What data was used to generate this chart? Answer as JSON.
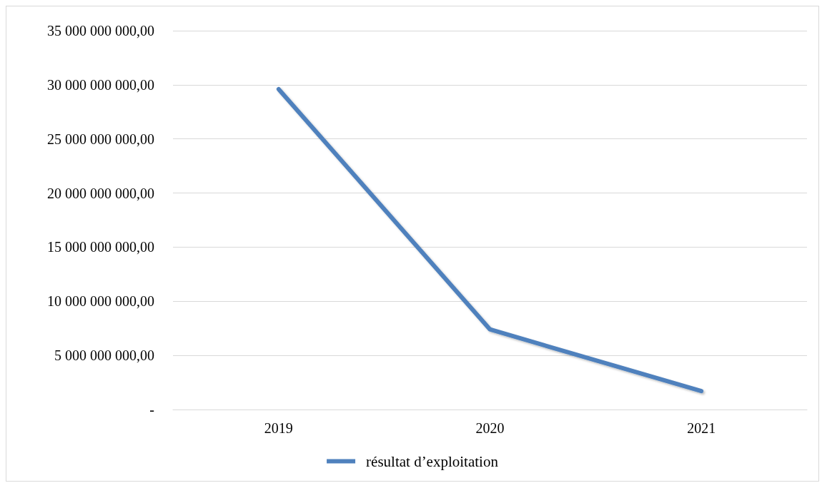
{
  "chart_data": {
    "type": "line",
    "categories": [
      "2019",
      "2020",
      "2021"
    ],
    "series": [
      {
        "name": "résultat d’exploitation",
        "color": "#4f81bd",
        "values": [
          29600000000,
          7400000000,
          1700000000
        ]
      }
    ],
    "ylim": [
      0,
      35000000000
    ],
    "yticks": [
      {
        "value": 0,
        "label": "-"
      },
      {
        "value": 5000000000,
        "label": "5 000 000 000,00"
      },
      {
        "value": 10000000000,
        "label": "10 000 000 000,00"
      },
      {
        "value": 15000000000,
        "label": "15 000 000 000,00"
      },
      {
        "value": 20000000000,
        "label": "20 000 000 000,00"
      },
      {
        "value": 25000000000,
        "label": "25 000 000 000,00"
      },
      {
        "value": 30000000000,
        "label": "30 000 000 000,00"
      },
      {
        "value": 35000000000,
        "label": "35 000 000 000,00"
      }
    ],
    "grid": "y",
    "legend": "bottom",
    "marker": "none",
    "line_style": "solid"
  }
}
